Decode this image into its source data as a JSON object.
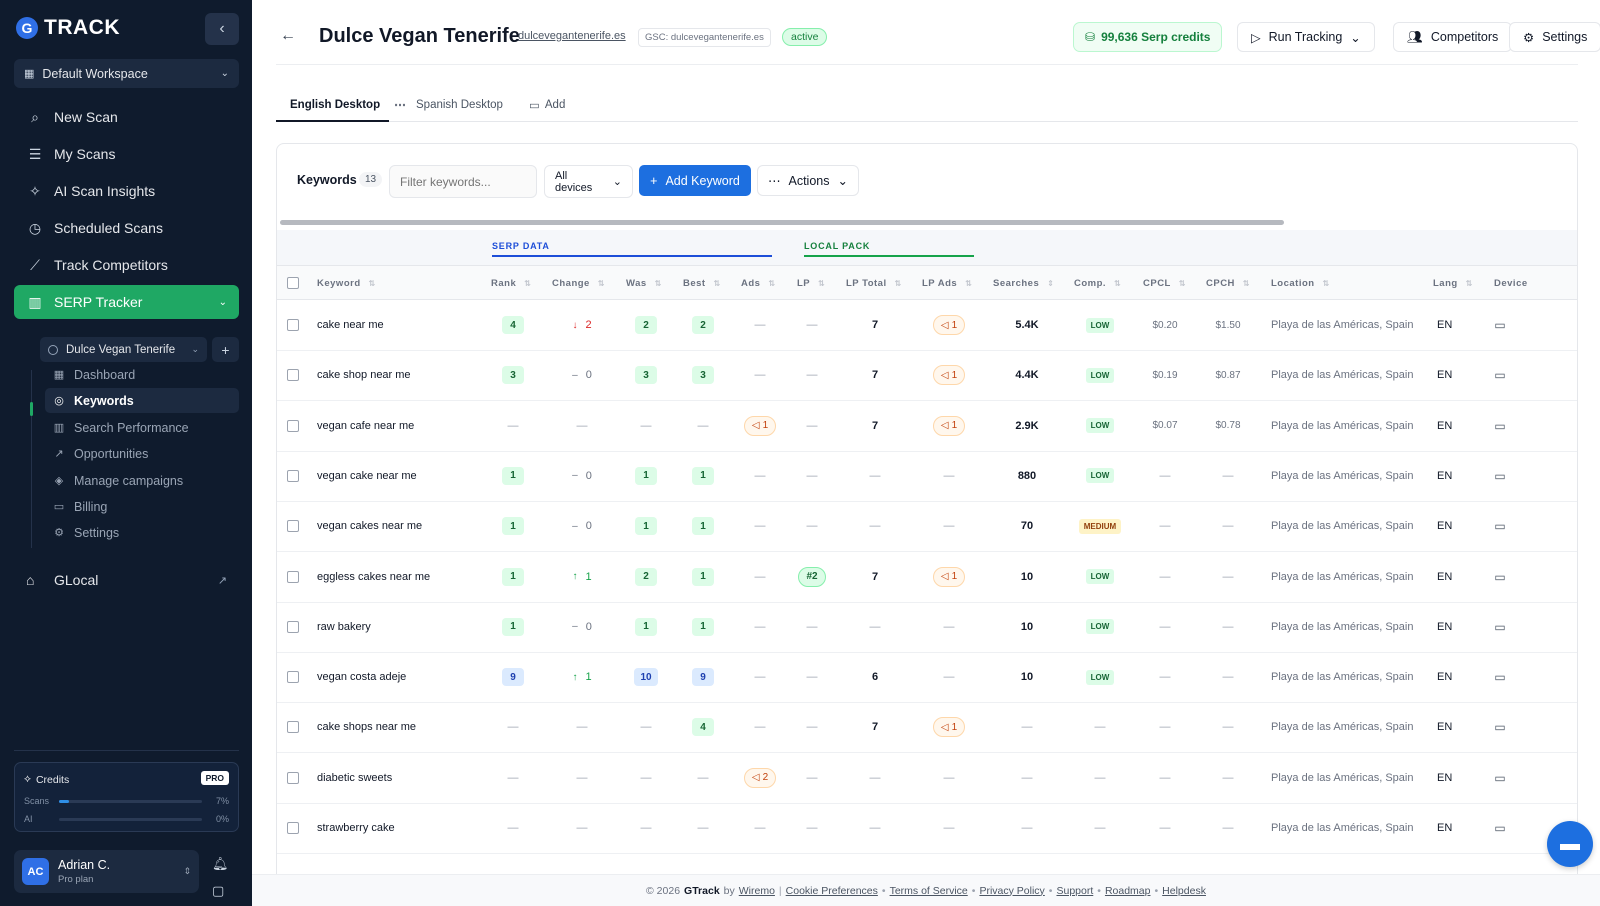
{
  "brand": {
    "logo_letter": "G",
    "name": "TRACK"
  },
  "sidebar": {
    "workspace": "Default Workspace",
    "nav": [
      {
        "label": "New Scan",
        "icon": "search-icon"
      },
      {
        "label": "My Scans",
        "icon": "list-icon"
      },
      {
        "label": "AI Scan Insights",
        "icon": "wand-icon"
      },
      {
        "label": "Scheduled Scans",
        "icon": "clock-icon"
      },
      {
        "label": "Track Competitors",
        "icon": "chart-line-icon"
      },
      {
        "label": "SERP Tracker",
        "icon": "bar-chart-icon"
      }
    ],
    "project": "Dulce Vegan Tenerife",
    "sub_items": [
      {
        "label": "Dashboard"
      },
      {
        "label": "Keywords"
      },
      {
        "label": "Search Performance"
      },
      {
        "label": "Opportunities"
      },
      {
        "label": "Manage campaigns"
      },
      {
        "label": "Billing"
      },
      {
        "label": "Settings"
      }
    ],
    "glocal": "GLocal",
    "credits": {
      "title": "Credits",
      "badge": "PRO",
      "rows": [
        {
          "label": "Scans",
          "value": "7%",
          "fraction": 0.07
        },
        {
          "label": "AI",
          "value": "0%",
          "fraction": 0
        }
      ]
    },
    "user": {
      "initials": "AC",
      "name": "Adrian C.",
      "plan": "Pro plan"
    }
  },
  "header": {
    "title": "Dulce Vegan Tenerife",
    "domain": "dulcevegantenerife.es",
    "gsc": "GSC: dulcevegantenerife.es",
    "status": "active",
    "credits": "99,636 Serp credits",
    "run_tracking": "Run Tracking",
    "competitors": "Competitors",
    "settings": "Settings"
  },
  "tabs": [
    "English Desktop",
    "Spanish Desktop",
    "Add"
  ],
  "toolbar": {
    "keywords_label": "Keywords",
    "keywords_count": "13",
    "filter_placeholder": "Filter keywords...",
    "devices": "All devices",
    "add_keyword": "Add Keyword",
    "actions": "Actions"
  },
  "groups": {
    "serp": "SERP DATA",
    "local": "LOCAL PACK"
  },
  "columns": [
    "Keyword",
    "Rank",
    "Change",
    "Was",
    "Best",
    "Ads",
    "LP",
    "LP Total",
    "LP Ads",
    "Searches",
    "Comp.",
    "CPCL",
    "CPCH",
    "Location",
    "Lang",
    "Device"
  ],
  "rows": [
    {
      "keyword": "cake near me",
      "rank": "4",
      "rank_style": "green",
      "change": "2",
      "change_dir": "down",
      "was": "2",
      "best": "2",
      "ads": "",
      "lp": "",
      "lp_total": "7",
      "lp_ads": "1",
      "searches": "5.4K",
      "comp": "LOW",
      "cpcl": "$0.20",
      "cpch": "$1.50",
      "location": "Playa de las Américas, Spain",
      "lang": "EN"
    },
    {
      "keyword": "cake shop near me",
      "rank": "3",
      "rank_style": "green",
      "change": "0",
      "change_dir": "neutral",
      "was": "3",
      "best": "3",
      "ads": "",
      "lp": "",
      "lp_total": "7",
      "lp_ads": "1",
      "searches": "4.4K",
      "comp": "LOW",
      "cpcl": "$0.19",
      "cpch": "$0.87",
      "location": "Playa de las Américas, Spain",
      "lang": "EN"
    },
    {
      "keyword": "vegan cafe near me",
      "rank": "",
      "rank_style": "",
      "change": "",
      "change_dir": "",
      "was": "",
      "best": "",
      "ads": "1",
      "lp": "",
      "lp_total": "7",
      "lp_ads": "1",
      "searches": "2.9K",
      "comp": "LOW",
      "cpcl": "$0.07",
      "cpch": "$0.78",
      "location": "Playa de las Américas, Spain",
      "lang": "EN"
    },
    {
      "keyword": "vegan cake near me",
      "rank": "1",
      "rank_style": "green",
      "change": "0",
      "change_dir": "neutral",
      "was": "1",
      "best": "1",
      "ads": "",
      "lp": "",
      "lp_total": "",
      "lp_ads": "",
      "searches": "880",
      "comp": "LOW",
      "cpcl": "",
      "cpch": "",
      "location": "Playa de las Américas, Spain",
      "lang": "EN"
    },
    {
      "keyword": "vegan cakes near me",
      "rank": "1",
      "rank_style": "green",
      "change": "0",
      "change_dir": "neutral",
      "was": "1",
      "best": "1",
      "ads": "",
      "lp": "",
      "lp_total": "",
      "lp_ads": "",
      "searches": "70",
      "comp": "MEDIUM",
      "cpcl": "",
      "cpch": "",
      "location": "Playa de las Américas, Spain",
      "lang": "EN"
    },
    {
      "keyword": "eggless cakes near me",
      "rank": "1",
      "rank_style": "green",
      "change": "1",
      "change_dir": "up",
      "was": "2",
      "best": "1",
      "ads": "",
      "lp": "#2",
      "lp_total": "7",
      "lp_ads": "1",
      "searches": "10",
      "comp": "LOW",
      "cpcl": "",
      "cpch": "",
      "location": "Playa de las Américas, Spain",
      "lang": "EN"
    },
    {
      "keyword": "raw bakery",
      "rank": "1",
      "rank_style": "green",
      "change": "0",
      "change_dir": "neutral",
      "was": "1",
      "best": "1",
      "ads": "",
      "lp": "",
      "lp_total": "",
      "lp_ads": "",
      "searches": "10",
      "comp": "LOW",
      "cpcl": "",
      "cpch": "",
      "location": "Playa de las Américas, Spain",
      "lang": "EN"
    },
    {
      "keyword": "vegan costa adeje",
      "rank": "9",
      "rank_style": "blue",
      "change": "1",
      "change_dir": "up",
      "was": "10",
      "best": "9",
      "ads": "",
      "lp": "",
      "lp_total": "6",
      "lp_ads": "",
      "searches": "10",
      "comp": "LOW",
      "cpcl": "",
      "cpch": "",
      "location": "Playa de las Américas, Spain",
      "lang": "EN"
    },
    {
      "keyword": "cake shops near me",
      "rank": "",
      "rank_style": "",
      "change": "",
      "change_dir": "",
      "was": "",
      "best": "4",
      "ads": "",
      "lp": "",
      "lp_total": "7",
      "lp_ads": "1",
      "searches": "",
      "comp": "",
      "cpcl": "",
      "cpch": "",
      "location": "Playa de las Américas, Spain",
      "lang": "EN"
    },
    {
      "keyword": "diabetic sweets",
      "rank": "",
      "rank_style": "",
      "change": "",
      "change_dir": "",
      "was": "",
      "best": "",
      "ads": "2",
      "lp": "",
      "lp_total": "",
      "lp_ads": "",
      "searches": "",
      "comp": "",
      "cpcl": "",
      "cpch": "",
      "location": "Playa de las Américas, Spain",
      "lang": "EN"
    },
    {
      "keyword": "strawberry cake",
      "rank": "",
      "rank_style": "",
      "change": "",
      "change_dir": "",
      "was": "",
      "best": "",
      "ads": "",
      "lp": "",
      "lp_total": "",
      "lp_ads": "",
      "searches": "",
      "comp": "",
      "cpcl": "",
      "cpch": "",
      "location": "Playa de las Américas, Spain",
      "lang": "EN"
    }
  ],
  "footer": {
    "copyright": "© 2026",
    "brand": "GTrack",
    "by": "by",
    "company": "Wiremo",
    "links": [
      "Cookie Preferences",
      "Terms of Service",
      "Privacy Policy",
      "Support",
      "Roadmap",
      "Helpdesk"
    ]
  },
  "colors": {
    "accent": "#1fa864",
    "primary": "#1d6fe0",
    "sidebar": "#0f1b2d"
  }
}
